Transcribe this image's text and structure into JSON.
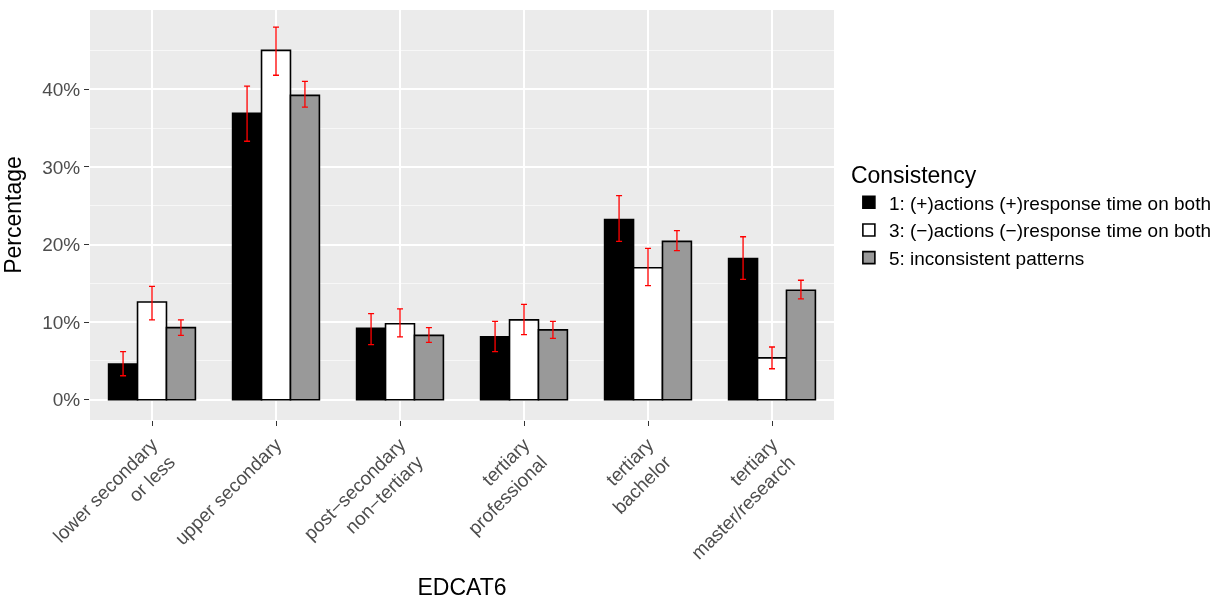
{
  "chart_data": {
    "type": "bar",
    "xlabel": "EDCAT6",
    "ylabel": "Percentage",
    "legend_title": "Consistency",
    "categories": [
      "lower secondary\nor less",
      "upper secondary",
      "post−secondary\nnon−tertiary",
      "tertiary\nprofessional",
      "tertiary\nbachelor",
      "tertiary\nmaster/research"
    ],
    "series": [
      {
        "name": "1: (+)actions (+)response time on both",
        "color": "#000000",
        "values": [
          4.6,
          36.9,
          9.2,
          8.1,
          23.2,
          18.2
        ],
        "errors": [
          [
            3.1,
            6.2
          ],
          [
            33.3,
            40.4
          ],
          [
            7.1,
            11.1
          ],
          [
            6.2,
            10.1
          ],
          [
            20.4,
            26.3
          ],
          [
            15.5,
            21.0
          ]
        ]
      },
      {
        "name": "3: (−)actions (−)response time on both",
        "color": "#ffffff",
        "values": [
          12.6,
          45.0,
          9.8,
          10.3,
          17.0,
          5.4
        ],
        "errors": [
          [
            10.3,
            14.6
          ],
          [
            41.8,
            48.0
          ],
          [
            8.1,
            11.7
          ],
          [
            8.4,
            12.3
          ],
          [
            14.7,
            19.5
          ],
          [
            4.0,
            6.8
          ]
        ]
      },
      {
        "name": "5: inconsistent patterns",
        "color": "#999999",
        "values": [
          9.3,
          39.2,
          8.3,
          9.0,
          20.4,
          14.1
        ],
        "errors": [
          [
            8.3,
            10.3
          ],
          [
            37.7,
            41.0
          ],
          [
            7.4,
            9.3
          ],
          [
            7.9,
            10.1
          ],
          [
            19.2,
            21.8
          ],
          [
            13.0,
            15.4
          ]
        ]
      }
    ],
    "ylim": [
      -2.6,
      50.2
    ],
    "yticks": [
      {
        "value": 0,
        "label": "0%"
      },
      {
        "value": 10,
        "label": "10%"
      },
      {
        "value": 20,
        "label": "20%"
      },
      {
        "value": 30,
        "label": "30%"
      },
      {
        "value": 40,
        "label": "40%"
      }
    ],
    "grid": true,
    "legend": "right"
  }
}
